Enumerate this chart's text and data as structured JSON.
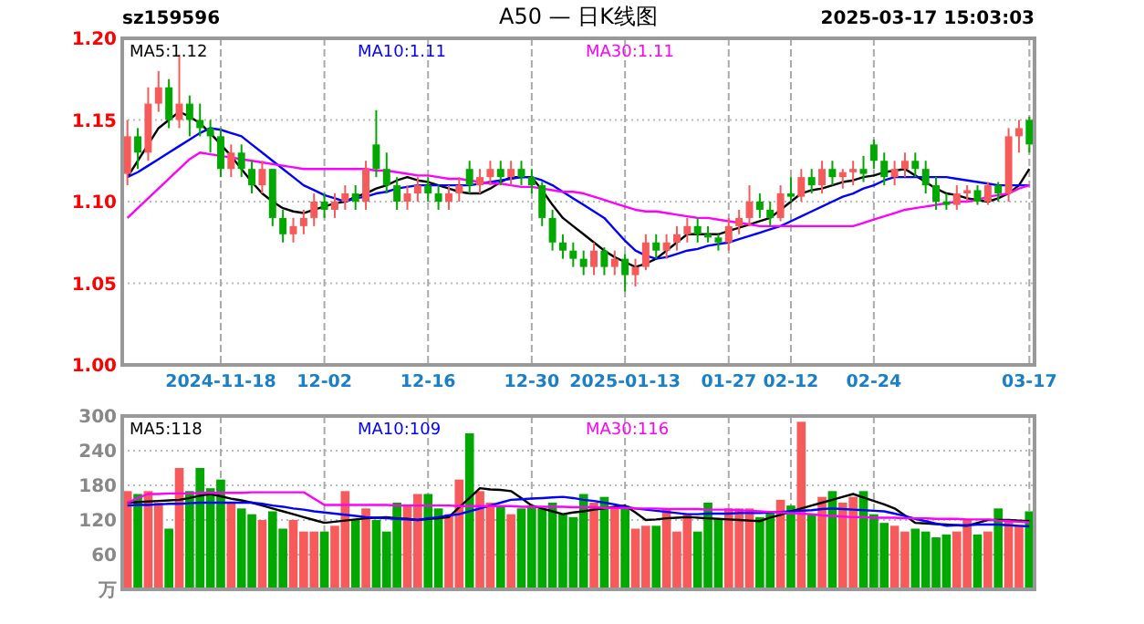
{
  "chart_data": [
    {
      "type": "candlestick",
      "title": "A50 — 日K线图",
      "annotations": [
        "sz159596",
        "2025-03-17 15:03:03"
      ],
      "categories": [
        null,
        null,
        null,
        null,
        null,
        null,
        null,
        null,
        null,
        "2024-11-18",
        null,
        null,
        null,
        null,
        null,
        null,
        null,
        null,
        null,
        "12-02",
        null,
        null,
        null,
        null,
        null,
        null,
        null,
        null,
        null,
        "12-16",
        null,
        null,
        null,
        null,
        null,
        null,
        null,
        null,
        null,
        "12-30",
        null,
        null,
        null,
        null,
        null,
        null,
        null,
        null,
        "2025-01-13",
        null,
        null,
        null,
        null,
        null,
        null,
        null,
        null,
        null,
        "01-27",
        null,
        null,
        null,
        null,
        null,
        "02-12",
        null,
        null,
        null,
        null,
        null,
        null,
        null,
        "02-24",
        null,
        null,
        null,
        null,
        null,
        null,
        null,
        null,
        null,
        null,
        null,
        null,
        null,
        null,
        "03-17"
      ],
      "ohlc": [
        [
          1.117,
          1.15,
          1.11,
          1.14
        ],
        [
          1.14,
          1.145,
          1.12,
          1.13
        ],
        [
          1.13,
          1.17,
          1.125,
          1.16
        ],
        [
          1.16,
          1.18,
          1.155,
          1.17
        ],
        [
          1.17,
          1.175,
          1.145,
          1.15
        ],
        [
          1.15,
          1.19,
          1.145,
          1.16
        ],
        [
          1.16,
          1.165,
          1.14,
          1.15
        ],
        [
          1.15,
          1.16,
          1.14,
          1.145
        ],
        [
          1.145,
          1.15,
          1.13,
          1.14
        ],
        [
          1.14,
          1.145,
          1.115,
          1.12
        ],
        [
          1.12,
          1.135,
          1.115,
          1.13
        ],
        [
          1.13,
          1.135,
          1.115,
          1.12
        ],
        [
          1.12,
          1.125,
          1.105,
          1.11
        ],
        [
          1.11,
          1.125,
          1.105,
          1.12
        ],
        [
          1.12,
          1.12,
          1.085,
          1.09
        ],
        [
          1.09,
          1.095,
          1.075,
          1.08
        ],
        [
          1.08,
          1.09,
          1.075,
          1.085
        ],
        [
          1.085,
          1.095,
          1.08,
          1.09
        ],
        [
          1.09,
          1.105,
          1.085,
          1.1
        ],
        [
          1.1,
          1.105,
          1.09,
          1.095
        ],
        [
          1.095,
          1.105,
          1.09,
          1.1
        ],
        [
          1.1,
          1.11,
          1.095,
          1.105
        ],
        [
          1.105,
          1.11,
          1.095,
          1.1
        ],
        [
          1.1,
          1.125,
          1.095,
          1.12
        ],
        [
          1.135,
          1.156,
          1.115,
          1.12
        ],
        [
          1.12,
          1.13,
          1.105,
          1.11
        ],
        [
          1.11,
          1.115,
          1.095,
          1.1
        ],
        [
          1.1,
          1.11,
          1.095,
          1.105
        ],
        [
          1.105,
          1.115,
          1.1,
          1.11
        ],
        [
          1.11,
          1.115,
          1.1,
          1.105
        ],
        [
          1.105,
          1.11,
          1.095,
          1.1
        ],
        [
          1.1,
          1.11,
          1.095,
          1.105
        ],
        [
          1.105,
          1.115,
          1.1,
          1.11
        ],
        [
          1.12,
          1.125,
          1.105,
          1.11
        ],
        [
          1.11,
          1.12,
          1.105,
          1.115
        ],
        [
          1.115,
          1.125,
          1.11,
          1.12
        ],
        [
          1.12,
          1.125,
          1.11,
          1.115
        ],
        [
          1.115,
          1.125,
          1.11,
          1.12
        ],
        [
          1.12,
          1.125,
          1.11,
          1.115
        ],
        [
          1.115,
          1.12,
          1.105,
          1.11
        ],
        [
          1.11,
          1.112,
          1.085,
          1.09
        ],
        [
          1.09,
          1.095,
          1.07,
          1.075
        ],
        [
          1.075,
          1.08,
          1.065,
          1.07
        ],
        [
          1.07,
          1.075,
          1.06,
          1.065
        ],
        [
          1.065,
          1.07,
          1.055,
          1.06
        ],
        [
          1.06,
          1.075,
          1.055,
          1.07
        ],
        [
          1.07,
          1.072,
          1.055,
          1.06
        ],
        [
          1.06,
          1.07,
          1.055,
          1.065
        ],
        [
          1.065,
          1.068,
          1.045,
          1.055
        ],
        [
          1.055,
          1.065,
          1.048,
          1.06
        ],
        [
          1.06,
          1.08,
          1.058,
          1.075
        ],
        [
          1.075,
          1.08,
          1.065,
          1.07
        ],
        [
          1.07,
          1.08,
          1.065,
          1.075
        ],
        [
          1.075,
          1.085,
          1.07,
          1.08
        ],
        [
          1.08,
          1.09,
          1.075,
          1.085
        ],
        [
          1.085,
          1.09,
          1.075,
          1.08
        ],
        [
          1.08,
          1.085,
          1.075,
          1.078
        ],
        [
          1.078,
          1.08,
          1.07,
          1.075
        ],
        [
          1.075,
          1.09,
          1.07,
          1.085
        ],
        [
          1.085,
          1.095,
          1.08,
          1.09
        ],
        [
          1.09,
          1.11,
          1.085,
          1.1
        ],
        [
          1.1,
          1.105,
          1.09,
          1.095
        ],
        [
          1.095,
          1.1,
          1.085,
          1.09
        ],
        [
          1.09,
          1.11,
          1.088,
          1.105
        ],
        [
          1.105,
          1.115,
          1.1,
          1.103
        ],
        [
          1.103,
          1.12,
          1.1,
          1.115
        ],
        [
          1.115,
          1.12,
          1.105,
          1.11
        ],
        [
          1.11,
          1.125,
          1.105,
          1.12
        ],
        [
          1.12,
          1.125,
          1.11,
          1.115
        ],
        [
          1.115,
          1.12,
          1.108,
          1.118
        ],
        [
          1.118,
          1.125,
          1.11,
          1.12
        ],
        [
          1.12,
          1.128,
          1.112,
          1.117
        ],
        [
          1.135,
          1.138,
          1.12,
          1.125
        ],
        [
          1.125,
          1.13,
          1.11,
          1.115
        ],
        [
          1.115,
          1.125,
          1.11,
          1.12
        ],
        [
          1.12,
          1.13,
          1.115,
          1.125
        ],
        [
          1.125,
          1.13,
          1.115,
          1.12
        ],
        [
          1.12,
          1.125,
          1.105,
          1.11
        ],
        [
          1.11,
          1.115,
          1.095,
          1.1
        ],
        [
          1.1,
          1.105,
          1.095,
          1.098
        ],
        [
          1.098,
          1.11,
          1.095,
          1.105
        ],
        [
          1.105,
          1.11,
          1.1,
          1.107
        ],
        [
          1.107,
          1.11,
          1.098,
          1.1
        ],
        [
          1.1,
          1.112,
          1.098,
          1.11
        ],
        [
          1.11,
          1.112,
          1.1,
          1.105
        ],
        [
          1.105,
          1.145,
          1.1,
          1.14
        ],
        [
          1.14,
          1.15,
          1.13,
          1.145
        ],
        [
          1.15,
          1.152,
          1.13,
          1.135
        ]
      ],
      "colors": [
        "#f65a5a",
        "#00a800",
        "#f65a5a",
        "#f65a5a",
        "#00a800",
        "#f65a5a",
        "#00a800",
        "#00a800",
        "#00a800",
        "#00a800",
        "#f65a5a",
        "#00a800",
        "#00a800",
        "#f65a5a",
        "#00a800",
        "#00a800",
        "#f65a5a",
        "#f65a5a",
        "#f65a5a",
        "#00a800",
        "#f65a5a",
        "#f65a5a",
        "#00a800",
        "#f65a5a",
        "#00a800",
        "#00a800",
        "#00a800",
        "#f65a5a",
        "#f65a5a",
        "#00a800",
        "#00a800",
        "#f65a5a",
        "#f65a5a",
        "#00a800",
        "#f65a5a",
        "#f65a5a",
        "#00a800",
        "#f65a5a",
        "#00a800",
        "#00a800",
        "#00a800",
        "#00a800",
        "#00a800",
        "#00a800",
        "#00a800",
        "#f65a5a",
        "#00a800",
        "#f65a5a",
        "#00a800",
        "#f65a5a",
        "#f65a5a",
        "#00a800",
        "#f65a5a",
        "#f65a5a",
        "#f65a5a",
        "#00a800",
        "#00a800",
        "#00a800",
        "#f65a5a",
        "#f65a5a",
        "#f65a5a",
        "#00a800",
        "#00a800",
        "#f65a5a",
        "#00a800",
        "#f65a5a",
        "#00a800",
        "#f65a5a",
        "#00a800",
        "#f65a5a",
        "#f65a5a",
        "#00a800",
        "#00a800",
        "#00a800",
        "#f65a5a",
        "#f65a5a",
        "#00a800",
        "#00a800",
        "#00a800",
        "#00a800",
        "#f65a5a",
        "#f65a5a",
        "#00a800",
        "#f65a5a",
        "#00a800",
        "#f65a5a",
        "#f65a5a",
        "#00a800"
      ],
      "series": [
        {
          "name": "MA5:1.12",
          "type": "line",
          "color": "#000000",
          "values": [
            1.115,
            1.125,
            1.135,
            1.145,
            1.15,
            1.155,
            1.152,
            1.148,
            1.142,
            1.135,
            1.128,
            1.12,
            1.112,
            1.105,
            1.1,
            1.096,
            1.094,
            1.093,
            1.095,
            1.097,
            1.099,
            1.1,
            1.103,
            1.105,
            1.108,
            1.11,
            1.113,
            1.115,
            1.113,
            1.112,
            1.11,
            1.108,
            1.106,
            1.105,
            1.105,
            1.108,
            1.112,
            1.115,
            1.115,
            1.115,
            1.107,
            1.098,
            1.09,
            1.085,
            1.08,
            1.075,
            1.07,
            1.066,
            1.063,
            1.06,
            1.062,
            1.065,
            1.07,
            1.075,
            1.08,
            1.08,
            1.08,
            1.08,
            1.082,
            1.084,
            1.086,
            1.088,
            1.09,
            1.095,
            1.1,
            1.105,
            1.107,
            1.108,
            1.11,
            1.112,
            1.113,
            1.115,
            1.116,
            1.118,
            1.119,
            1.12,
            1.116,
            1.112,
            1.108,
            1.105,
            1.104,
            1.102,
            1.101,
            1.1,
            1.102,
            1.105,
            1.11,
            1.12
          ]
        },
        {
          "name": "MA10:1.11",
          "type": "line",
          "color": "#0000ff",
          "values": [
            1.115,
            1.118,
            1.122,
            1.126,
            1.13,
            1.134,
            1.138,
            1.142,
            1.145,
            1.144,
            1.142,
            1.14,
            1.135,
            1.13,
            1.125,
            1.12,
            1.115,
            1.11,
            1.107,
            1.104,
            1.102,
            1.1,
            1.102,
            1.103,
            1.105,
            1.106,
            1.108,
            1.109,
            1.11,
            1.11,
            1.11,
            1.11,
            1.11,
            1.11,
            1.111,
            1.112,
            1.113,
            1.114,
            1.115,
            1.115,
            1.113,
            1.11,
            1.106,
            1.102,
            1.098,
            1.094,
            1.09,
            1.083,
            1.076,
            1.07,
            1.067,
            1.065,
            1.066,
            1.068,
            1.07,
            1.071,
            1.073,
            1.074,
            1.075,
            1.077,
            1.079,
            1.081,
            1.083,
            1.085,
            1.088,
            1.091,
            1.094,
            1.097,
            1.1,
            1.103,
            1.105,
            1.108,
            1.11,
            1.113,
            1.115,
            1.115,
            1.115,
            1.115,
            1.115,
            1.115,
            1.114,
            1.113,
            1.112,
            1.111,
            1.11,
            1.11,
            1.11,
            1.11
          ]
        },
        {
          "name": "MA30:1.11",
          "type": "line",
          "color": "#ff00ff",
          "values": [
            1.09,
            1.096,
            1.102,
            1.108,
            1.114,
            1.12,
            1.126,
            1.13,
            1.129,
            1.128,
            1.127,
            1.126,
            1.125,
            1.124,
            1.123,
            1.122,
            1.121,
            1.12,
            1.12,
            1.12,
            1.12,
            1.12,
            1.12,
            1.12,
            1.119,
            1.119,
            1.118,
            1.117,
            1.116,
            1.116,
            1.115,
            1.114,
            1.114,
            1.113,
            1.112,
            1.111,
            1.111,
            1.11,
            1.109,
            1.109,
            1.108,
            1.107,
            1.106,
            1.106,
            1.105,
            1.103,
            1.101,
            1.099,
            1.097,
            1.095,
            1.094,
            1.094,
            1.093,
            1.092,
            1.091,
            1.09,
            1.09,
            1.089,
            1.088,
            1.087,
            1.086,
            1.085,
            1.085,
            1.085,
            1.085,
            1.085,
            1.085,
            1.085,
            1.085,
            1.085,
            1.085,
            1.087,
            1.089,
            1.091,
            1.093,
            1.095,
            1.096,
            1.097,
            1.098,
            1.099,
            1.1,
            1.1,
            1.101,
            1.103,
            1.104,
            1.105,
            1.108,
            1.11
          ]
        }
      ],
      "ylim": [
        1.0,
        1.2
      ],
      "yticks": [
        {
          "value": 1.0,
          "label": "1.00"
        },
        {
          "value": 1.05,
          "label": "1.05"
        },
        {
          "value": 1.1,
          "label": "1.10"
        },
        {
          "value": 1.15,
          "label": "1.15"
        },
        {
          "value": 1.2,
          "label": "1.20"
        }
      ],
      "grid": true,
      "legend": "top"
    },
    {
      "type": "bar",
      "categories": [
        null,
        null,
        null,
        null,
        null,
        null,
        null,
        null,
        null,
        null,
        null,
        null,
        null,
        null,
        null,
        null,
        null,
        null,
        null,
        null,
        null,
        null,
        null,
        null,
        null,
        null,
        null,
        null,
        null,
        null,
        null,
        null,
        null,
        null,
        null,
        null,
        null,
        null,
        null,
        null,
        null,
        null,
        null,
        null,
        null,
        null,
        null,
        null,
        null,
        null,
        null,
        null,
        null,
        null,
        null,
        null,
        null,
        null,
        null,
        null,
        null,
        null,
        null,
        null,
        null,
        null,
        null,
        null,
        null,
        null,
        null,
        null,
        null,
        null,
        null,
        null,
        null,
        null,
        null,
        null,
        null,
        null,
        null,
        null,
        null,
        null,
        null,
        null
      ],
      "values": [
        170,
        165,
        170,
        150,
        105,
        210,
        170,
        210,
        175,
        190,
        150,
        140,
        130,
        120,
        135,
        105,
        120,
        100,
        100,
        100,
        110,
        170,
        120,
        140,
        120,
        100,
        150,
        145,
        165,
        165,
        140,
        130,
        190,
        270,
        170,
        150,
        145,
        130,
        140,
        145,
        140,
        150,
        130,
        125,
        165,
        150,
        160,
        140,
        145,
        105,
        110,
        110,
        140,
        100,
        130,
        100,
        150,
        120,
        140,
        140,
        140,
        125,
        135,
        155,
        145,
        290,
        130,
        160,
        170,
        150,
        160,
        170,
        130,
        115,
        110,
        100,
        105,
        100,
        90,
        95,
        100,
        120,
        95,
        100,
        140,
        120,
        110,
        135
      ],
      "colors": [
        "#f65a5a",
        "#00a800",
        "#f65a5a",
        "#f65a5a",
        "#00a800",
        "#f65a5a",
        "#00a800",
        "#00a800",
        "#00a800",
        "#00a800",
        "#f65a5a",
        "#00a800",
        "#00a800",
        "#f65a5a",
        "#00a800",
        "#00a800",
        "#f65a5a",
        "#f65a5a",
        "#f65a5a",
        "#00a800",
        "#f65a5a",
        "#f65a5a",
        "#00a800",
        "#f65a5a",
        "#00a800",
        "#00a800",
        "#00a800",
        "#f65a5a",
        "#f65a5a",
        "#00a800",
        "#00a800",
        "#f65a5a",
        "#f65a5a",
        "#00a800",
        "#f65a5a",
        "#f65a5a",
        "#00a800",
        "#f65a5a",
        "#00a800",
        "#00a800",
        "#00a800",
        "#00a800",
        "#00a800",
        "#00a800",
        "#00a800",
        "#f65a5a",
        "#00a800",
        "#f65a5a",
        "#00a800",
        "#f65a5a",
        "#f65a5a",
        "#00a800",
        "#f65a5a",
        "#f65a5a",
        "#f65a5a",
        "#00a800",
        "#00a800",
        "#00a800",
        "#f65a5a",
        "#f65a5a",
        "#f65a5a",
        "#00a800",
        "#00a800",
        "#f65a5a",
        "#00a800",
        "#f65a5a",
        "#00a800",
        "#f65a5a",
        "#00a800",
        "#f65a5a",
        "#f65a5a",
        "#00a800",
        "#00a800",
        "#00a800",
        "#f65a5a",
        "#f65a5a",
        "#00a800",
        "#00a800",
        "#00a800",
        "#00a800",
        "#f65a5a",
        "#f65a5a",
        "#00a800",
        "#f65a5a",
        "#00a800",
        "#f65a5a",
        "#f65a5a",
        "#00a800"
      ],
      "series": [
        {
          "name": "MA5:118",
          "type": "line",
          "color": "#000000",
          "values": [
            150,
            151,
            152,
            153,
            154,
            155,
            158,
            162,
            165,
            161,
            157,
            154,
            150,
            145,
            140,
            135,
            130,
            125,
            120,
            115,
            117,
            119,
            121,
            123,
            124,
            125,
            123,
            122,
            120,
            122,
            123,
            125,
            142,
            158,
            175,
            173,
            172,
            170,
            158,
            145,
            140,
            135,
            130,
            133,
            135,
            138,
            140,
            143,
            145,
            133,
            120,
            121,
            123,
            124,
            125,
            124,
            123,
            122,
            121,
            120,
            119,
            118,
            124,
            129,
            135,
            140,
            145,
            150,
            155,
            160,
            165,
            159,
            153,
            147,
            140,
            128,
            115,
            114,
            113,
            112,
            111,
            110,
            115,
            120,
            120,
            120,
            119,
            118
          ]
        },
        {
          "name": "MA10:109",
          "type": "line",
          "color": "#0000ff",
          "values": [
            145,
            146,
            146,
            147,
            148,
            148,
            149,
            150,
            150,
            150,
            150,
            150,
            150,
            148,
            145,
            143,
            140,
            138,
            135,
            133,
            131,
            129,
            127,
            125,
            124,
            123,
            122,
            121,
            120,
            123,
            125,
            128,
            130,
            135,
            140,
            145,
            150,
            155,
            156,
            157,
            158,
            159,
            160,
            158,
            155,
            153,
            150,
            147,
            143,
            140,
            138,
            136,
            134,
            132,
            130,
            130,
            131,
            131,
            131,
            132,
            132,
            132,
            133,
            134,
            135,
            136,
            137,
            139,
            140,
            139,
            138,
            137,
            136,
            135,
            131,
            127,
            122,
            118,
            114,
            110,
            111,
            111,
            112,
            112,
            112,
            111,
            110,
            109
          ]
        },
        {
          "name": "MA30:116",
          "type": "line",
          "color": "#ff00ff",
          "values": [
            150,
            158,
            165,
            165,
            166,
            166,
            166,
            167,
            167,
            167,
            167,
            167,
            168,
            168,
            168,
            168,
            168,
            168,
            157,
            146,
            146,
            146,
            146,
            146,
            146,
            146,
            145,
            145,
            145,
            145,
            145,
            145,
            144,
            144,
            144,
            144,
            144,
            144,
            143,
            143,
            143,
            143,
            143,
            142,
            142,
            142,
            141,
            141,
            141,
            140,
            140,
            140,
            139,
            139,
            139,
            139,
            138,
            138,
            138,
            137,
            136,
            135,
            134,
            133,
            132,
            131,
            130,
            128,
            127,
            126,
            125,
            125,
            124,
            124,
            124,
            123,
            123,
            123,
            122,
            122,
            122,
            121,
            121,
            121,
            119,
            118,
            117,
            116
          ]
        }
      ],
      "ylim": [
        0,
        300
      ],
      "yticks": [
        {
          "value": 0,
          "label": "万"
        },
        60,
        120,
        180,
        240,
        300
      ],
      "grid": true,
      "legend": "top",
      "tick_labels": "y"
    }
  ]
}
